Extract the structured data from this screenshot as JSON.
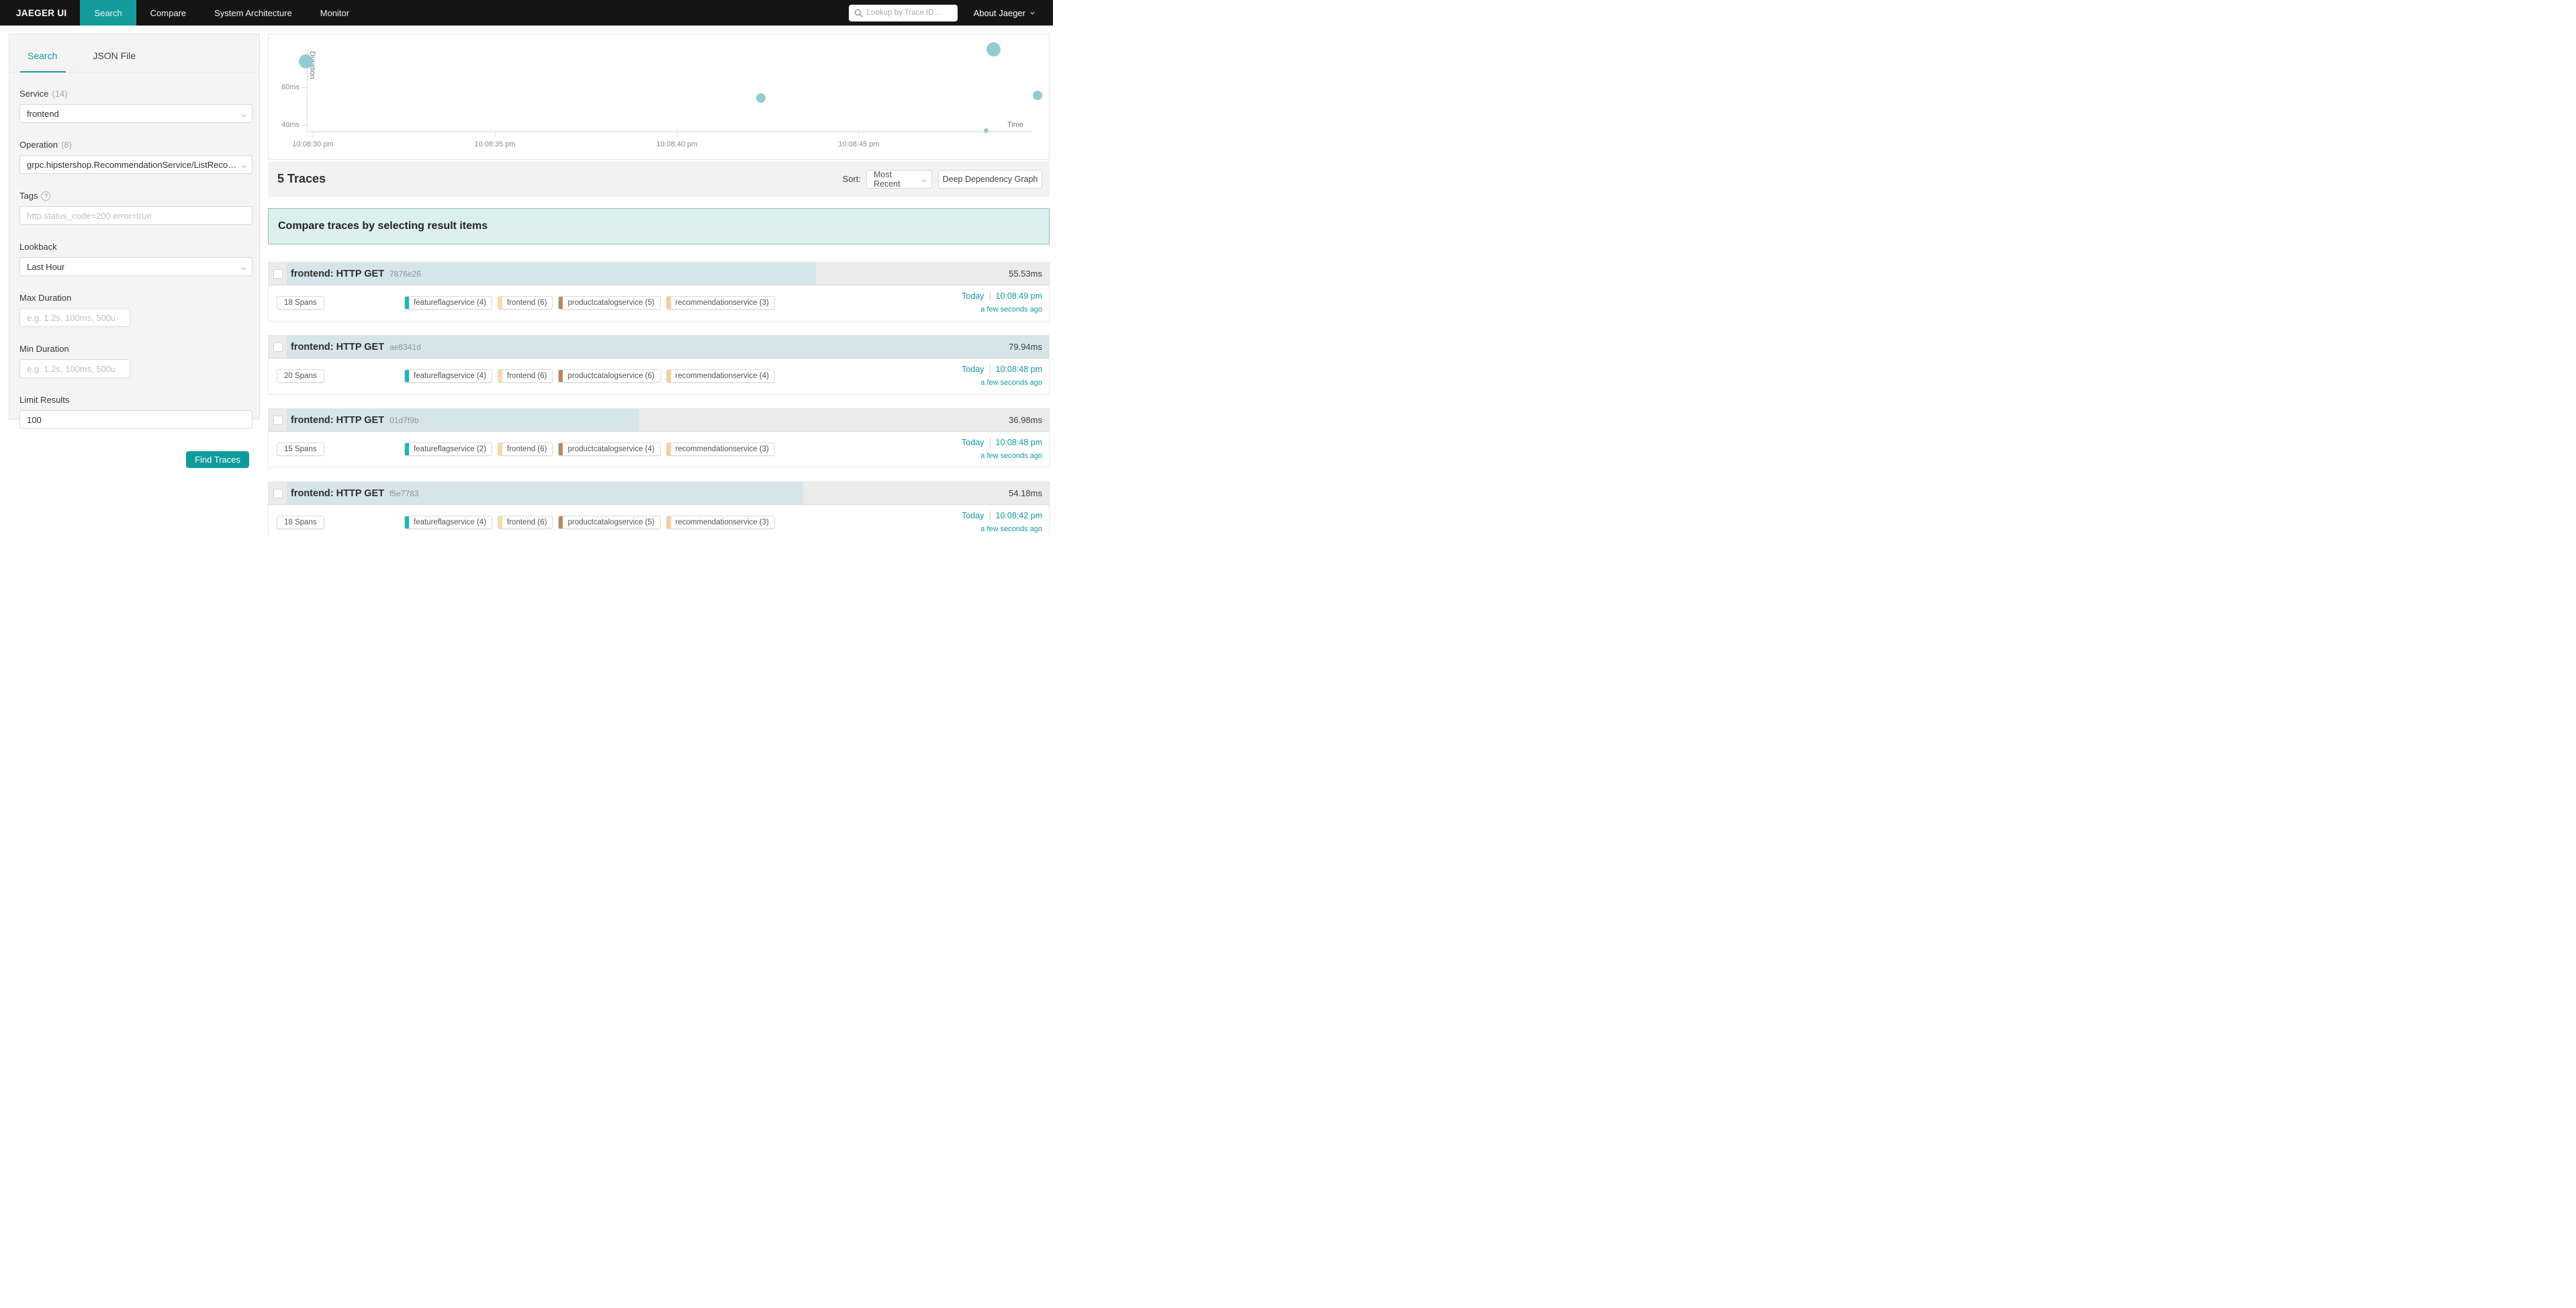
{
  "nav": {
    "brand": "JAEGER UI",
    "items": [
      {
        "label": "Search",
        "active": true
      },
      {
        "label": "Compare",
        "active": false
      },
      {
        "label": "System Architecture",
        "active": false
      },
      {
        "label": "Monitor",
        "active": false
      }
    ],
    "search_placeholder": "Lookup by Trace ID...",
    "about_label": "About Jaeger"
  },
  "sidebar": {
    "tabs": [
      {
        "label": "Search",
        "active": true
      },
      {
        "label": "JSON File",
        "active": false
      }
    ],
    "service": {
      "label": "Service",
      "count": "(14)",
      "value": "frontend"
    },
    "operation": {
      "label": "Operation",
      "count": "(8)",
      "value": "grpc.hipstershop.RecommendationService/ListRecommend..."
    },
    "tags": {
      "label": "Tags",
      "help_icon": "?",
      "placeholder": "http.status_code=200 error=true"
    },
    "lookback": {
      "label": "Lookback",
      "value": "Last Hour"
    },
    "max_duration": {
      "label": "Max Duration",
      "placeholder": "e.g. 1.2s, 100ms, 500us"
    },
    "min_duration": {
      "label": "Min Duration",
      "placeholder": "e.g. 1.2s, 100ms, 500us"
    },
    "limit": {
      "label": "Limit Results",
      "value": "100"
    },
    "find_button": "Find Traces"
  },
  "chart_data": {
    "type": "scatter",
    "xlabel": "Time",
    "ylabel": "Duration",
    "x_ticks": [
      {
        "label": "10:08:30 pm",
        "t_sec": 0
      },
      {
        "label": "10:08:35 pm",
        "t_sec": 5
      },
      {
        "label": "10:08:40 pm",
        "t_sec": 10
      },
      {
        "label": "10:08:45 pm",
        "t_sec": 15
      }
    ],
    "y_ticks": [
      {
        "label": "60ms",
        "ms": 60
      },
      {
        "label": "40ms",
        "ms": 40
      }
    ],
    "points": [
      {
        "time": "10:08:29 pm",
        "t_sec": -0.2,
        "duration_ms": 73.5,
        "size": "large"
      },
      {
        "time": "10:08:42 pm",
        "t_sec": 12.3,
        "duration_ms": 54.18,
        "size": "medium"
      },
      {
        "time": "10:08:48 pm",
        "t_sec": 18.7,
        "duration_ms": 79.94,
        "size": "large"
      },
      {
        "time": "10:08:49 pm",
        "t_sec": 19.9,
        "duration_ms": 55.53,
        "size": "medium"
      },
      {
        "time": "10:08:48 pm",
        "t_sec": 18.5,
        "duration_ms": 36.98,
        "size": "small"
      }
    ],
    "bubble_color": "#94cbd1",
    "grid": false,
    "legend": false
  },
  "results": {
    "count_label": "5 Traces",
    "sort_label": "Sort:",
    "sort_value": "Most Recent",
    "ddg_button": "Deep Dependency Graph",
    "compare_banner": "Compare traces by selecting result items",
    "max_duration_ms": 79.94,
    "traces": [
      {
        "title": "frontend: HTTP GET",
        "trace_id": "7876e26",
        "duration": "55.53ms",
        "duration_ms": 55.53,
        "spans": "18 Spans",
        "services": [
          {
            "label": "featureflagservice (4)",
            "color": "#17B8BE"
          },
          {
            "label": "frontend (6)",
            "color": "#F8DCA1"
          },
          {
            "label": "productcatalogservice (5)",
            "color": "#B7885E"
          },
          {
            "label": "recommendationservice (3)",
            "color": "#FFCB99"
          }
        ],
        "day": "Today",
        "time": "10:08:49 pm",
        "relative": "a few seconds ago"
      },
      {
        "title": "frontend: HTTP GET",
        "trace_id": "ae8341d",
        "duration": "79.94ms",
        "duration_ms": 79.94,
        "spans": "20 Spans",
        "services": [
          {
            "label": "featureflagservice (4)",
            "color": "#17B8BE"
          },
          {
            "label": "frontend (6)",
            "color": "#F8DCA1"
          },
          {
            "label": "productcatalogservice (6)",
            "color": "#B7885E"
          },
          {
            "label": "recommendationservice (4)",
            "color": "#FFCB99"
          }
        ],
        "day": "Today",
        "time": "10:08:48 pm",
        "relative": "a few seconds ago"
      },
      {
        "title": "frontend: HTTP GET",
        "trace_id": "01d7f9b",
        "duration": "36.98ms",
        "duration_ms": 36.98,
        "spans": "15 Spans",
        "services": [
          {
            "label": "featureflagservice (2)",
            "color": "#17B8BE"
          },
          {
            "label": "frontend (6)",
            "color": "#F8DCA1"
          },
          {
            "label": "productcatalogservice (4)",
            "color": "#B7885E"
          },
          {
            "label": "recommendationservice (3)",
            "color": "#FFCB99"
          }
        ],
        "day": "Today",
        "time": "10:08:48 pm",
        "relative": "a few seconds ago"
      },
      {
        "title": "frontend: HTTP GET",
        "trace_id": "f5e7783",
        "duration": "54.18ms",
        "duration_ms": 54.18,
        "spans": "18 Spans",
        "services": [
          {
            "label": "featureflagservice (4)",
            "color": "#17B8BE"
          },
          {
            "label": "frontend (6)",
            "color": "#F8DCA1"
          },
          {
            "label": "productcatalogservice (5)",
            "color": "#B7885E"
          },
          {
            "label": "recommendationservice (3)",
            "color": "#FFCB99"
          }
        ],
        "day": "Today",
        "time": "10:08:42 pm",
        "relative": "a few seconds ago"
      }
    ]
  },
  "colors": {
    "accent_teal": "#149c9c",
    "link_teal": "#11999c",
    "nav_bg": "#151515",
    "duration_bar": "#d5e5ea",
    "banner_bg": "#ddefec",
    "banner_border": "#84c4bf",
    "bubble": "#94cbd1"
  }
}
